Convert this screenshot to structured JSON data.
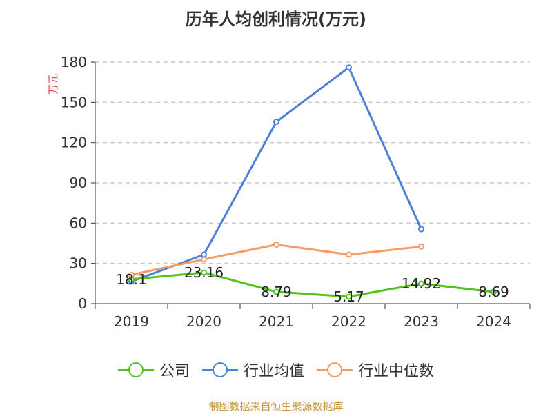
{
  "chart_data": {
    "type": "line",
    "title": "历年人均创利情况(万元)",
    "ylabel": "万元",
    "xlabel": "",
    "categories": [
      "2019",
      "2020",
      "2021",
      "2022",
      "2023",
      "2024"
    ],
    "ylim": [
      0,
      180
    ],
    "yticks": [
      0,
      30,
      60,
      90,
      120,
      150,
      180
    ],
    "grid": true,
    "legend_position": "bottom",
    "series": [
      {
        "name": "公司",
        "color": "#52c41a",
        "values": [
          18.1,
          23.16,
          8.79,
          5.17,
          14.92,
          8.69
        ],
        "labels": [
          "18.1",
          "23.16",
          "8.79",
          "5.17",
          "14.92",
          "8.69"
        ]
      },
      {
        "name": "行业均值",
        "color": "#4a7fdc",
        "values": [
          16.5,
          36.5,
          135.5,
          176,
          55.5,
          null
        ]
      },
      {
        "name": "行业中位数",
        "color": "#f79a64",
        "values": [
          21.5,
          33,
          44,
          36.5,
          42.5,
          null
        ]
      }
    ]
  },
  "source": "制图数据来自恒生聚源数据库"
}
